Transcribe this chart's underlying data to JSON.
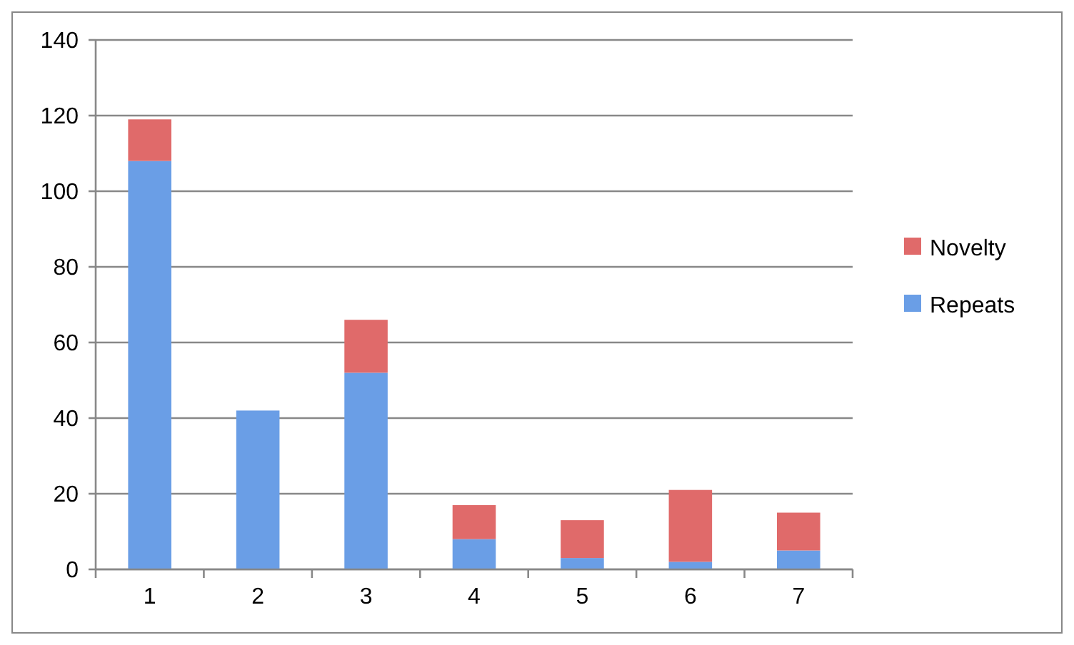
{
  "chart_data": {
    "type": "bar",
    "stacked": true,
    "categories": [
      "1",
      "2",
      "3",
      "4",
      "5",
      "6",
      "7"
    ],
    "series": [
      {
        "name": "Repeats",
        "color": "#6a9ee6",
        "values": [
          108,
          42,
          52,
          8,
          3,
          2,
          5
        ]
      },
      {
        "name": "Novelty",
        "color": "#e06a6a",
        "values": [
          11,
          0,
          14,
          9,
          10,
          19,
          10
        ]
      }
    ],
    "ylim": [
      0,
      140
    ],
    "yticks": [
      0,
      20,
      40,
      60,
      80,
      100,
      120,
      140
    ],
    "grid": "y",
    "legend": "right"
  }
}
